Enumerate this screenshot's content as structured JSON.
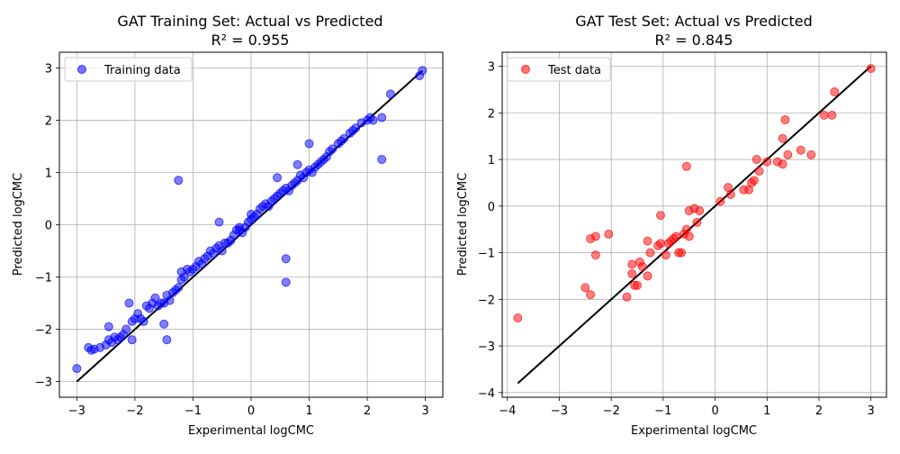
{
  "chart_data": [
    {
      "type": "scatter",
      "title": "GAT Training Set: Actual vs Predicted",
      "subtitle": "R² = 0.955",
      "xlabel": "Experimental logCMC",
      "ylabel": "Predicted logCMC",
      "xlim": [
        -3.3,
        3.3
      ],
      "ylim": [
        -3.3,
        3.3
      ],
      "xticks": [
        -3,
        -2,
        -1,
        0,
        1,
        2,
        3
      ],
      "yticks": [
        -3,
        -2,
        -1,
        0,
        1,
        2,
        3
      ],
      "grid": true,
      "legend": "top-left",
      "color": "#0000ff",
      "series": [
        {
          "name": "Training data",
          "x": [
            -3.0,
            -2.8,
            -2.75,
            -2.7,
            -2.6,
            -2.5,
            -2.45,
            -2.4,
            -2.35,
            -2.3,
            -2.25,
            -2.2,
            -2.15,
            -2.1,
            -2.05,
            -2.0,
            -1.95,
            -1.9,
            -1.85,
            -1.8,
            -1.75,
            -1.7,
            -1.65,
            -1.6,
            -1.55,
            -1.5,
            -1.45,
            -1.4,
            -1.35,
            -1.3,
            -1.25,
            -1.2,
            -1.2,
            -1.15,
            -1.1,
            -1.05,
            -1.0,
            -0.95,
            -0.9,
            -0.85,
            -0.8,
            -0.75,
            -0.7,
            -0.65,
            -0.6,
            -0.55,
            -0.5,
            -0.45,
            -0.4,
            -0.35,
            -0.3,
            -0.25,
            -0.2,
            -0.15,
            -0.1,
            -0.05,
            0.0,
            0.05,
            0.1,
            0.15,
            0.2,
            0.25,
            0.3,
            0.35,
            0.4,
            0.45,
            0.5,
            0.55,
            0.6,
            0.65,
            0.7,
            0.75,
            0.8,
            0.85,
            0.9,
            0.95,
            1.0,
            1.05,
            1.1,
            1.15,
            1.2,
            1.25,
            1.3,
            1.35,
            1.4,
            1.5,
            1.55,
            1.6,
            1.7,
            1.75,
            1.8,
            1.9,
            2.0,
            2.05,
            2.1,
            2.25,
            2.4,
            2.9,
            2.95,
            -2.45,
            -2.05,
            -1.5,
            -1.45,
            -0.55,
            0.6,
            0.6,
            2.25,
            0.0,
            0.45,
            0.8,
            1.0,
            -1.25,
            -0.2
          ],
          "y": [
            -2.75,
            -2.35,
            -2.4,
            -2.38,
            -2.35,
            -2.3,
            -2.2,
            -2.25,
            -2.15,
            -2.2,
            -2.15,
            -2.1,
            -2.0,
            -1.5,
            -1.85,
            -1.8,
            -1.7,
            -1.8,
            -1.85,
            -1.55,
            -1.6,
            -1.5,
            -1.4,
            -1.55,
            -1.5,
            -1.5,
            -1.35,
            -1.45,
            -1.3,
            -1.25,
            -1.2,
            -0.9,
            -1.05,
            -1.0,
            -0.85,
            -0.9,
            -0.85,
            -0.8,
            -0.7,
            -0.75,
            -0.65,
            -0.6,
            -0.5,
            -0.55,
            -0.45,
            -0.4,
            -0.5,
            -0.35,
            -0.35,
            -0.3,
            -0.2,
            -0.1,
            -0.05,
            -0.15,
            -0.05,
            0.05,
            0.1,
            0.15,
            0.2,
            0.3,
            0.35,
            0.4,
            0.35,
            0.45,
            0.5,
            0.55,
            0.6,
            0.65,
            0.7,
            0.65,
            0.75,
            0.8,
            0.85,
            0.95,
            0.9,
            1.0,
            1.05,
            1.0,
            1.1,
            1.15,
            1.2,
            1.25,
            1.3,
            1.4,
            1.45,
            1.55,
            1.6,
            1.65,
            1.75,
            1.8,
            1.85,
            1.95,
            2.0,
            2.05,
            2.0,
            2.05,
            2.5,
            2.85,
            2.95,
            -1.95,
            -2.2,
            -1.9,
            -2.2,
            0.05,
            -0.65,
            -1.1,
            1.25,
            0.2,
            0.9,
            1.15,
            1.55,
            0.85,
            -0.1
          ]
        }
      ],
      "reference_line": {
        "x": [
          -3.0,
          2.95
        ],
        "y": [
          -3.0,
          2.95
        ]
      }
    },
    {
      "type": "scatter",
      "title": "GAT Test Set: Actual vs Predicted",
      "subtitle": "R² = 0.845",
      "xlabel": "Experimental logCMC",
      "ylabel": "Predicted logCMC",
      "xlim": [
        -4.1,
        3.3
      ],
      "ylim": [
        -4.1,
        3.3
      ],
      "xticks": [
        -4,
        -3,
        -2,
        -1,
        0,
        1,
        2,
        3
      ],
      "yticks": [
        -4,
        -3,
        -2,
        -1,
        0,
        1,
        2,
        3
      ],
      "grid": true,
      "legend": "top-left",
      "color": "#ff0000",
      "series": [
        {
          "name": "Test data",
          "x": [
            -3.8,
            -2.5,
            -2.4,
            -2.4,
            -2.3,
            -2.3,
            -2.05,
            -1.7,
            -1.6,
            -1.6,
            -1.55,
            -1.5,
            -1.45,
            -1.4,
            -1.3,
            -1.3,
            -1.25,
            -1.1,
            -1.05,
            -1.05,
            -0.95,
            -0.9,
            -0.85,
            -0.8,
            -0.75,
            -0.7,
            -0.65,
            -0.6,
            -0.55,
            -0.55,
            -0.5,
            -0.5,
            -0.4,
            -0.35,
            -0.3,
            0.1,
            0.25,
            0.3,
            0.55,
            0.65,
            0.7,
            0.75,
            0.8,
            0.85,
            1.0,
            1.2,
            1.3,
            1.3,
            1.35,
            1.4,
            1.65,
            1.85,
            2.1,
            2.25,
            2.3,
            3.0
          ],
          "y": [
            -2.4,
            -1.75,
            -1.9,
            -0.7,
            -0.65,
            -1.05,
            -0.6,
            -1.95,
            -1.45,
            -1.25,
            -1.7,
            -1.7,
            -1.2,
            -1.3,
            -1.5,
            -0.75,
            -1.0,
            -0.85,
            -0.8,
            -0.2,
            -1.05,
            -0.8,
            -0.75,
            -0.7,
            -0.65,
            -1.0,
            -1.0,
            -0.6,
            -0.5,
            0.85,
            -0.1,
            -0.65,
            -0.05,
            -0.35,
            -0.1,
            0.1,
            0.4,
            0.25,
            0.35,
            0.35,
            0.5,
            0.55,
            1.0,
            0.75,
            0.95,
            0.95,
            1.45,
            0.9,
            1.85,
            1.1,
            1.2,
            1.1,
            1.95,
            1.95,
            2.45,
            2.95
          ]
        }
      ],
      "reference_line": {
        "x": [
          -3.8,
          3.0
        ],
        "y": [
          -3.8,
          3.0
        ]
      }
    }
  ]
}
